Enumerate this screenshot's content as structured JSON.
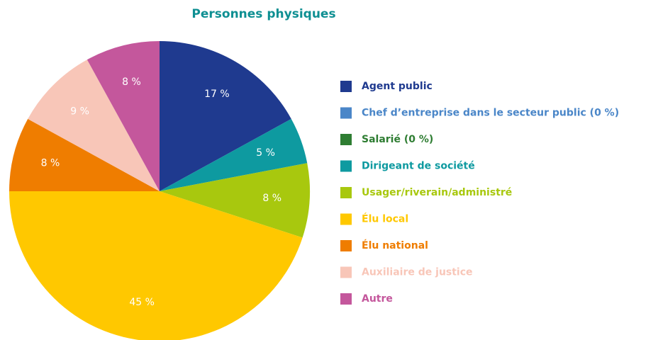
{
  "chart_data": {
    "type": "pie",
    "title": "Personnes physiques",
    "categories": [
      "Agent public",
      "Chef d’entreprise dans le secteur public (0 %)",
      "Salarié (0 %)",
      "Dirigeant de société",
      "Usager/riverain/administré",
      "Élu local",
      "Élu national",
      "Auxiliaire de justice",
      "Autre"
    ],
    "values": [
      17,
      0,
      0,
      5,
      8,
      45,
      8,
      9,
      8
    ],
    "value_labels": [
      "17 %",
      null,
      null,
      "5 %",
      "8 %",
      "45 %",
      "8 %",
      "9 %",
      "8 %"
    ],
    "colors": [
      "#1f3a8f",
      "#4a86c8",
      "#2e7d32",
      "#0e9aa0",
      "#a8c80e",
      "#ffc800",
      "#ef7d00",
      "#f8c6b8",
      "#c4579c"
    ],
    "legend": "right"
  }
}
